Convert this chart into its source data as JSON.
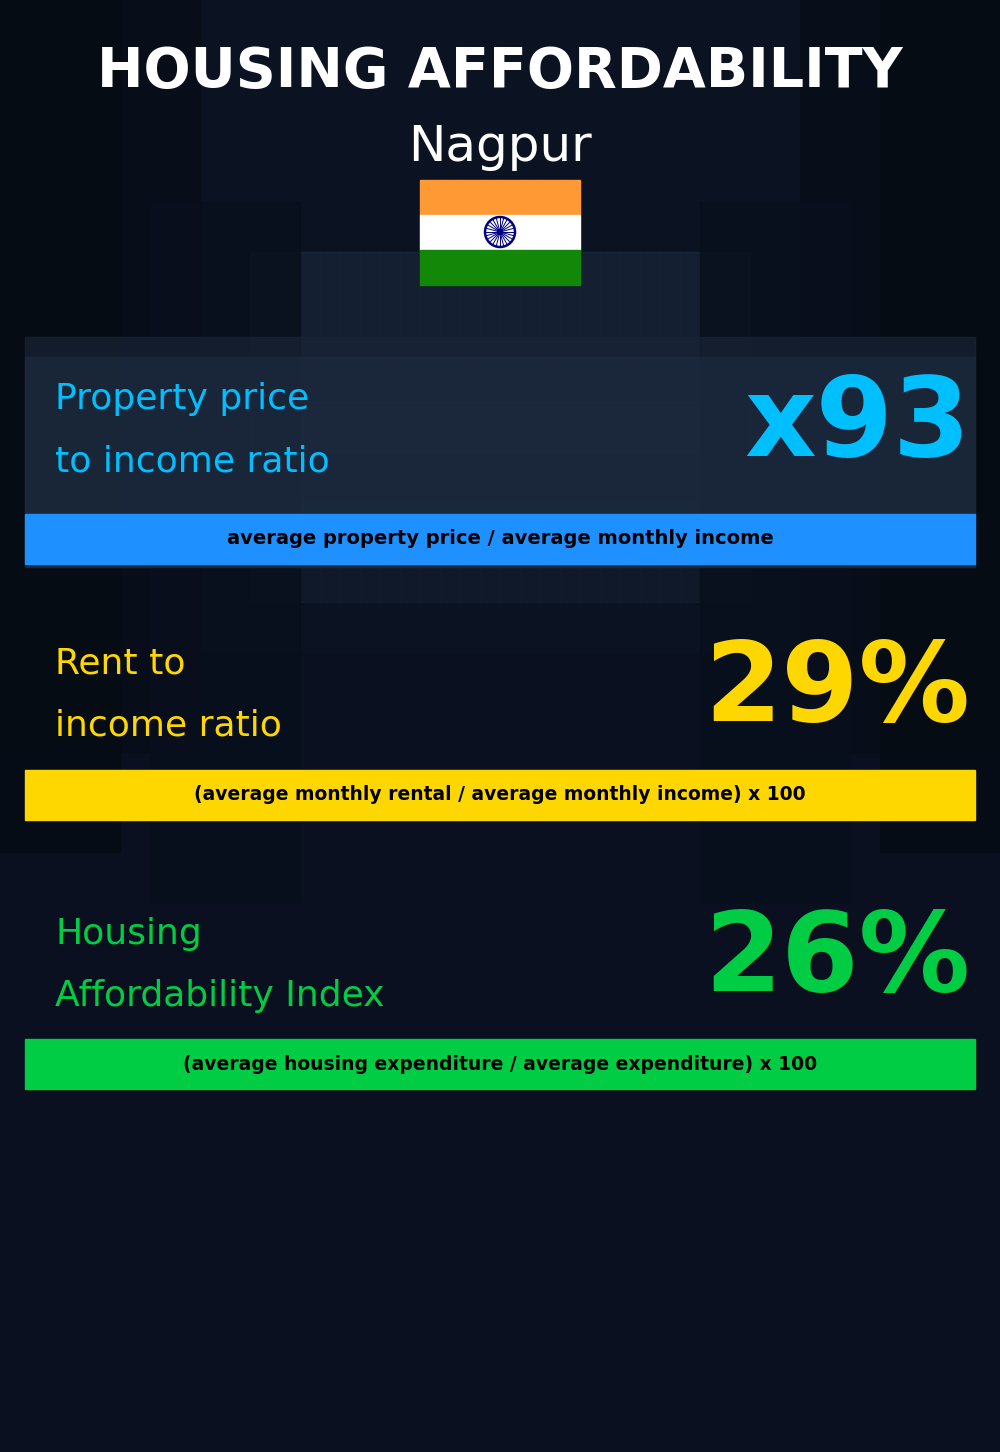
{
  "title_line1": "HOUSING AFFORDABILITY",
  "title_line2": "Nagpur",
  "section1_label_line1": "Property price",
  "section1_label_line2": "to income ratio",
  "section1_value": "x93",
  "section1_label_color": "#00BFFF",
  "section1_value_color": "#00BFFF",
  "section1_formula": "average property price / average monthly income",
  "section1_formula_bg": "#1E90FF",
  "section2_label_line1": "Rent to",
  "section2_label_line2": "income ratio",
  "section2_value": "29%",
  "section2_label_color": "#FFD700",
  "section2_value_color": "#FFD700",
  "section2_formula": "(average monthly rental / average monthly income) x 100",
  "section2_formula_bg": "#FFD700",
  "section3_label_line1": "Housing",
  "section3_label_line2": "Affordability Index",
  "section3_value": "26%",
  "section3_label_color": "#00CC44",
  "section3_value_color": "#00CC44",
  "section3_formula": "(average housing expenditure / average expenditure) x 100",
  "section3_formula_bg": "#00CC44",
  "bg_color": "#0a1020",
  "title_color": "#FFFFFF",
  "formula_text_color": "#000000",
  "panel_color": "#1a2538"
}
